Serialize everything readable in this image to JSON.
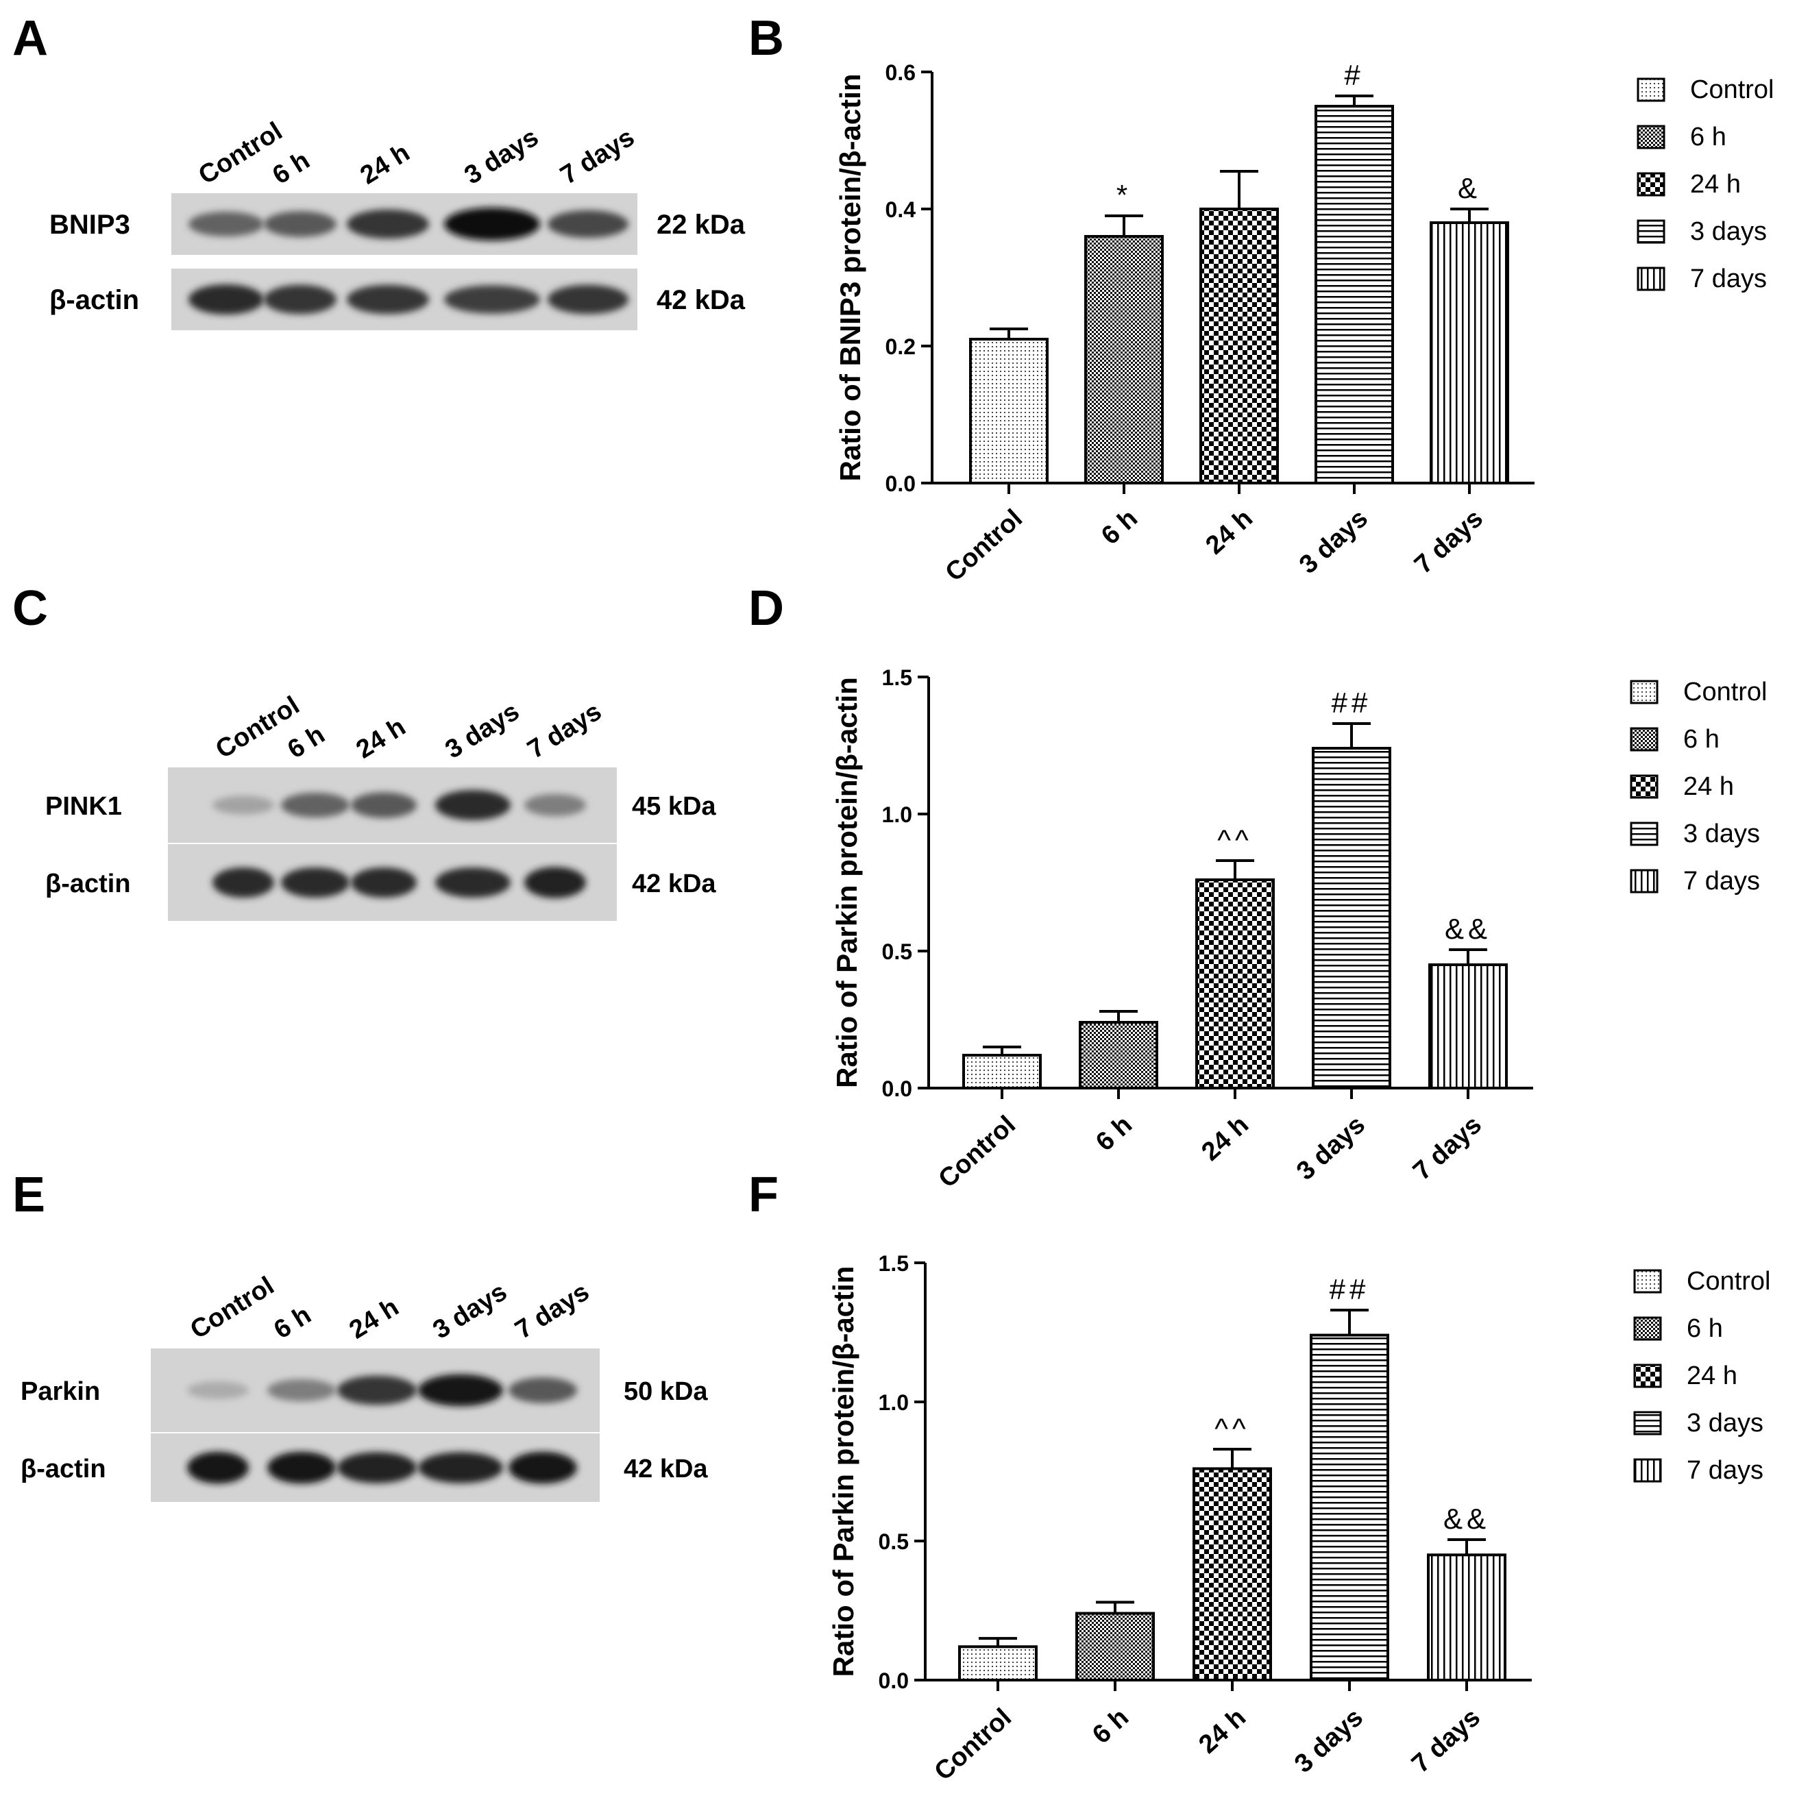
{
  "colors": {
    "ink": "#000000",
    "paper": "#ffffff",
    "blot_bg": "#d2d2d2",
    "band": "#1a1a1a"
  },
  "blots": [
    {
      "panel": "A",
      "lanes": [
        "Control",
        "6 h",
        "24 h",
        "3 days",
        "7 days"
      ],
      "rows": [
        {
          "name": "BNIP3",
          "kda": "22 kDa",
          "intensity": [
            0.55,
            0.6,
            0.8,
            1.0,
            0.7
          ]
        },
        {
          "name": "β-actin",
          "kda": "42 kDa",
          "intensity": [
            0.85,
            0.8,
            0.8,
            0.75,
            0.8
          ]
        }
      ]
    },
    {
      "panel": "C",
      "lanes": [
        "Control",
        "6 h",
        "24 h",
        "3 days",
        "7 days"
      ],
      "rows": [
        {
          "name": "PINK1",
          "kda": "45 kDa",
          "intensity": [
            0.2,
            0.55,
            0.6,
            0.85,
            0.4
          ]
        },
        {
          "name": "β-actin",
          "kda": "42 kDa",
          "intensity": [
            0.85,
            0.85,
            0.85,
            0.85,
            0.9
          ]
        }
      ]
    },
    {
      "panel": "E",
      "lanes": [
        "Control",
        "6 h",
        "24 h",
        "3 days",
        "7 days"
      ],
      "rows": [
        {
          "name": "Parkin",
          "kda": "50 kDa",
          "intensity": [
            0.15,
            0.4,
            0.8,
            0.95,
            0.6
          ]
        },
        {
          "name": "β-actin",
          "kda": "42 kDa",
          "intensity": [
            0.95,
            0.95,
            0.9,
            0.9,
            0.95
          ]
        }
      ]
    }
  ],
  "chart_data": [
    {
      "panel": "B",
      "type": "bar",
      "categories": [
        "Control",
        "6 h",
        "24 h",
        "3 days",
        "7 days"
      ],
      "values": [
        0.21,
        0.36,
        0.4,
        0.55,
        0.38
      ],
      "errors": [
        0.015,
        0.03,
        0.055,
        0.015,
        0.02
      ],
      "annotations": [
        "",
        "*",
        "",
        "#",
        "&"
      ],
      "ylabel": "Ratio of BNIP3 protein/β-actin",
      "ylim": [
        0,
        0.6
      ],
      "yticks": [
        "0.0",
        "0.2",
        "0.4",
        "0.6"
      ],
      "legend": [
        "Control",
        "6 h",
        "24 h",
        "3 days",
        "7 days"
      ],
      "legend_position": "right",
      "patterns": [
        "dots",
        "fine-check",
        "check",
        "horizontal",
        "vertical"
      ]
    },
    {
      "panel": "D",
      "type": "bar",
      "categories": [
        "Control",
        "6 h",
        "24 h",
        "3 days",
        "7 days"
      ],
      "values": [
        0.12,
        0.24,
        0.76,
        1.24,
        0.45
      ],
      "errors": [
        0.03,
        0.04,
        0.07,
        0.09,
        0.055
      ],
      "annotations": [
        "",
        "",
        "^^",
        "##",
        "&&"
      ],
      "ylabel": "Ratio of Parkin protein/β-actin",
      "ylim": [
        0,
        1.5
      ],
      "yticks": [
        "0.0",
        "0.5",
        "1.0",
        "1.5"
      ],
      "legend": [
        "Control",
        "6 h",
        "24 h",
        "3 days",
        "7 days"
      ],
      "legend_position": "right",
      "patterns": [
        "dots",
        "fine-check",
        "check",
        "horizontal",
        "vertical"
      ]
    },
    {
      "panel": "F",
      "type": "bar",
      "categories": [
        "Control",
        "6 h",
        "24 h",
        "3 days",
        "7 days"
      ],
      "values": [
        0.12,
        0.24,
        0.76,
        1.24,
        0.45
      ],
      "errors": [
        0.03,
        0.04,
        0.07,
        0.09,
        0.055
      ],
      "annotations": [
        "",
        "",
        "^^",
        "##",
        "&&"
      ],
      "ylabel": "Ratio of Parkin protein/β-actin",
      "ylim": [
        0,
        1.5
      ],
      "yticks": [
        "0.0",
        "0.5",
        "1.0",
        "1.5"
      ],
      "legend": [
        "Control",
        "6 h",
        "24 h",
        "3 days",
        "7 days"
      ],
      "legend_position": "right",
      "patterns": [
        "dots",
        "fine-check",
        "check",
        "horizontal",
        "vertical"
      ]
    }
  ]
}
